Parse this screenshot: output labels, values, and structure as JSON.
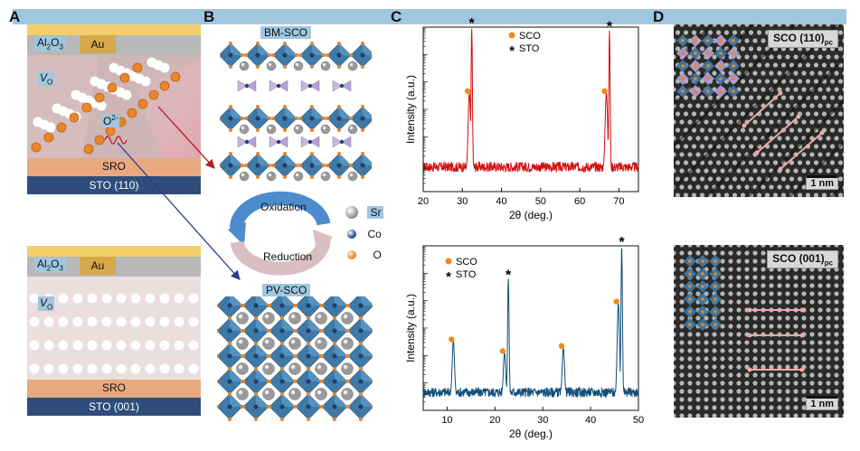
{
  "banner_color": "#9fc7e0",
  "panels": {
    "A": {
      "letter": "A",
      "top": {
        "caps": [
          "Al",
          "2",
          "O",
          "3"
        ],
        "electrode": "Au",
        "vacancy": [
          "V",
          "O"
        ],
        "ion": [
          "O",
          "2-"
        ],
        "buffer": "SRO",
        "substrate": "STO (110)"
      },
      "bottom": {
        "caps": [
          "Al",
          "2",
          "O",
          "3"
        ],
        "electrode": "Au",
        "vacancy": [
          "V",
          "O"
        ],
        "buffer": "SRO",
        "substrate": "STO (001)"
      }
    },
    "B": {
      "letter": "B",
      "top_title": "BM-SCO",
      "bottom_title": "PV-SCO",
      "oxidation": "Oxidation",
      "reduction": "Reduction",
      "legend": [
        {
          "label": "Sr",
          "color": "#9a9a9a"
        },
        {
          "label": "Co",
          "color": "#1f4e8c"
        },
        {
          "label": "O",
          "color": "#e8862a"
        }
      ]
    },
    "C": {
      "letter": "C"
    },
    "D": {
      "letter": "D",
      "top_label": [
        "SCO (110)",
        "pc"
      ],
      "bottom_label": [
        "SCO (001)",
        "pc"
      ],
      "scale_top": "1 nm",
      "scale_bottom": "1 nm"
    }
  },
  "chart_data": [
    {
      "type": "line",
      "color": "#d10f0f",
      "xlabel": "2θ (deg.)",
      "ylabel": "Intensity (a.u.)",
      "xlim": [
        20,
        75
      ],
      "ylim": [
        0,
        1
      ],
      "yscale": "log",
      "xticks": [
        20,
        30,
        40,
        50,
        60,
        70
      ],
      "legend": [
        {
          "marker": "dot",
          "label": "SCO",
          "color": "#f08a1c"
        },
        {
          "marker": "star",
          "label": "STO",
          "color": "#111111"
        }
      ],
      "peaks": [
        {
          "x": 31.8,
          "height": 0.6,
          "width": 0.45,
          "type": "SCO"
        },
        {
          "x": 32.4,
          "height": 1.0,
          "width": 0.25,
          "type": "STO"
        },
        {
          "x": 66.8,
          "height": 0.6,
          "width": 0.45,
          "type": "SCO"
        },
        {
          "x": 67.6,
          "height": 0.98,
          "width": 0.25,
          "type": "STO"
        }
      ],
      "baseline": 0.12
    },
    {
      "type": "line",
      "color": "#0f4f7a",
      "xlabel": "2θ (deg.)",
      "ylabel": "Intensity (a.u.)",
      "xlim": [
        5,
        50
      ],
      "ylim": [
        0,
        1
      ],
      "yscale": "log",
      "xticks": [
        10,
        20,
        30,
        40,
        50
      ],
      "legend": [
        {
          "marker": "dot",
          "label": "SCO",
          "color": "#f08a1c"
        },
        {
          "marker": "star",
          "label": "STO",
          "color": "#111111"
        }
      ],
      "peaks": [
        {
          "x": 11.3,
          "height": 0.42,
          "width": 0.35,
          "type": "SCO"
        },
        {
          "x": 22.0,
          "height": 0.35,
          "width": 0.35,
          "type": "SCO"
        },
        {
          "x": 22.8,
          "height": 0.8,
          "width": 0.22,
          "type": "STO"
        },
        {
          "x": 34.3,
          "height": 0.38,
          "width": 0.35,
          "type": "SCO"
        },
        {
          "x": 45.8,
          "height": 0.65,
          "width": 0.35,
          "type": "SCO"
        },
        {
          "x": 46.5,
          "height": 1.0,
          "width": 0.22,
          "type": "STO"
        }
      ],
      "baseline": 0.08
    }
  ]
}
